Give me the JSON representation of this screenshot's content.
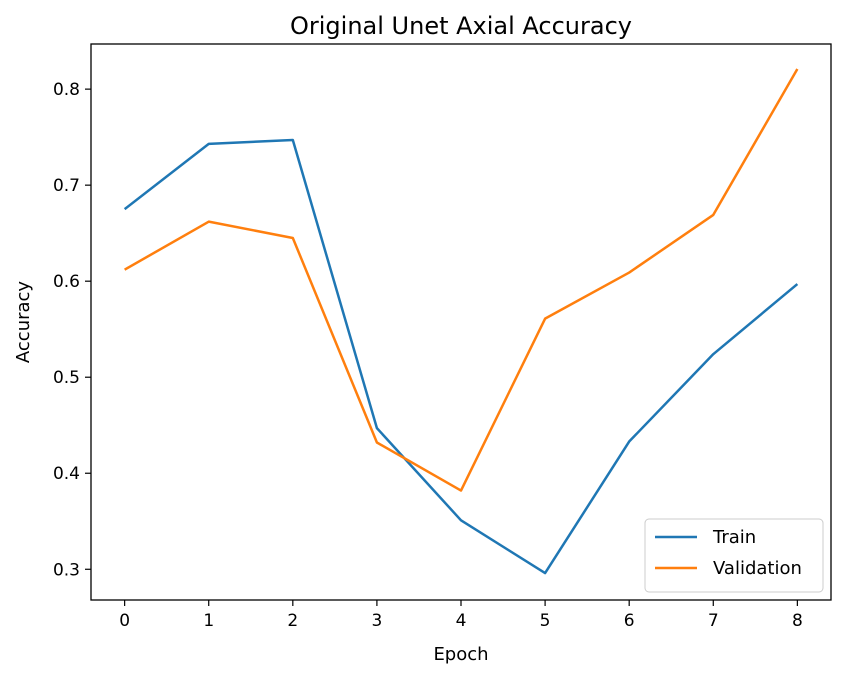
{
  "chart_data": {
    "type": "line",
    "title": "Original Unet Axial Accuracy",
    "xlabel": "Epoch",
    "ylabel": "Accuracy",
    "x": [
      0,
      1,
      2,
      3,
      4,
      5,
      6,
      7,
      8
    ],
    "xticks": [
      "0",
      "1",
      "2",
      "3",
      "4",
      "5",
      "6",
      "7",
      "8"
    ],
    "yticks": [
      "0.3",
      "0.4",
      "0.5",
      "0.6",
      "0.7",
      "0.8"
    ],
    "ytick_values": [
      0.3,
      0.4,
      0.5,
      0.6,
      0.7,
      0.8
    ],
    "xlim": [
      -0.4,
      8.4
    ],
    "ylim": [
      0.268,
      0.847
    ],
    "grid": false,
    "legend_position": "lower right",
    "series": [
      {
        "name": "Train",
        "color": "#1f77b4",
        "values": [
          0.675,
          0.743,
          0.747,
          0.447,
          0.351,
          0.296,
          0.433,
          0.524,
          0.597
        ]
      },
      {
        "name": "Validation",
        "color": "#ff7f0e",
        "values": [
          0.612,
          0.662,
          0.645,
          0.432,
          0.382,
          0.561,
          0.609,
          0.669,
          0.821
        ]
      }
    ]
  }
}
